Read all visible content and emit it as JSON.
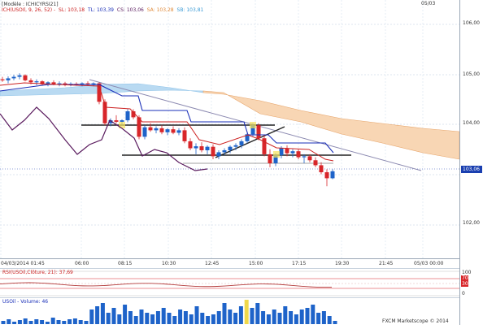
{
  "header": {
    "model_label": "[Modèle : ICHICYRSI21]",
    "ichimoku_label": "ICH(USOIl, 9, 26, 52) -",
    "values": [
      {
        "text": "SL: 103,18",
        "color": "#cc2222"
      },
      {
        "text": "TL: 103,39",
        "color": "#1a2fb8"
      },
      {
        "text": "CS: 103,06",
        "color": "#5a1b5e"
      },
      {
        "text": "SA: 103,28",
        "color": "#e08a3a"
      },
      {
        "text": "SB: 103,81",
        "color": "#3b9bd6"
      }
    ],
    "top_date": "05/03"
  },
  "price_axis": {
    "ticks": [
      "106,00",
      "105,00",
      "104,00",
      "102,00"
    ],
    "current_price": "103,06"
  },
  "time_axis": {
    "labels": [
      "04/03/2014 01:45",
      "06:00",
      "08:15",
      "10:30",
      "12:45",
      "15:00",
      "17:15",
      "19:30",
      "21:45",
      "05/03 00:00"
    ]
  },
  "rsi": {
    "label": "RSI(USOil,Clôture, 21): 37,69",
    "levels": [
      "100",
      "70",
      "30",
      "0"
    ],
    "level_values": [
      100,
      70,
      30,
      0
    ],
    "value": 37.69
  },
  "volume": {
    "label": "USOil - Volume: 46",
    "value": 46
  },
  "footer": {
    "brand": "FXCM Marketscope © 2014"
  },
  "colors": {
    "bull": "#1e63c9",
    "bear": "#d8262a",
    "kijun": "#1a2fb8",
    "tenkan": "#cc2222",
    "chikou": "#5a1b5e",
    "cloud_bull": "#b9daf2",
    "cloud_bear": "#f8d6b4",
    "trendline": "#8b89b0",
    "levels": "#222222",
    "rsi_line": "#b33a3a",
    "price_marker": "#1a3fb0"
  }
}
